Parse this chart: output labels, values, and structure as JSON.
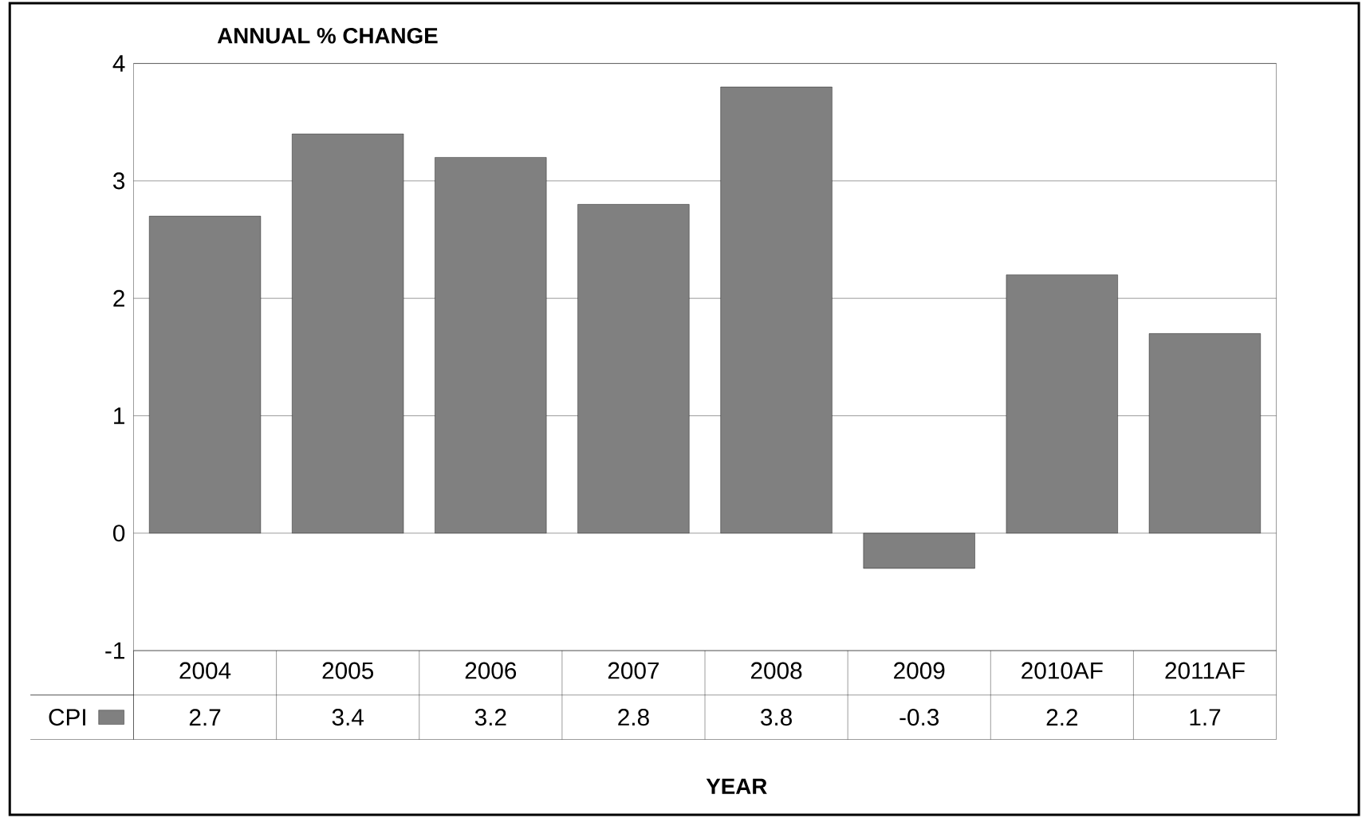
{
  "chart_data": {
    "type": "bar",
    "ylabel": "ANNUAL % CHANGE",
    "xlabel": "YEAR",
    "categories": [
      "2004",
      "2005",
      "2006",
      "2007",
      "2008",
      "2009",
      "2010AF",
      "2011AF"
    ],
    "series": [
      {
        "name": "CPI",
        "color": "#808080",
        "values": [
          2.7,
          3.4,
          3.2,
          2.8,
          3.8,
          -0.3,
          2.2,
          1.7
        ]
      }
    ],
    "ylim": [
      -1,
      4
    ],
    "yticks": [
      -1,
      0,
      1,
      2,
      3,
      4
    ],
    "grid": "y",
    "data_labels": true
  }
}
